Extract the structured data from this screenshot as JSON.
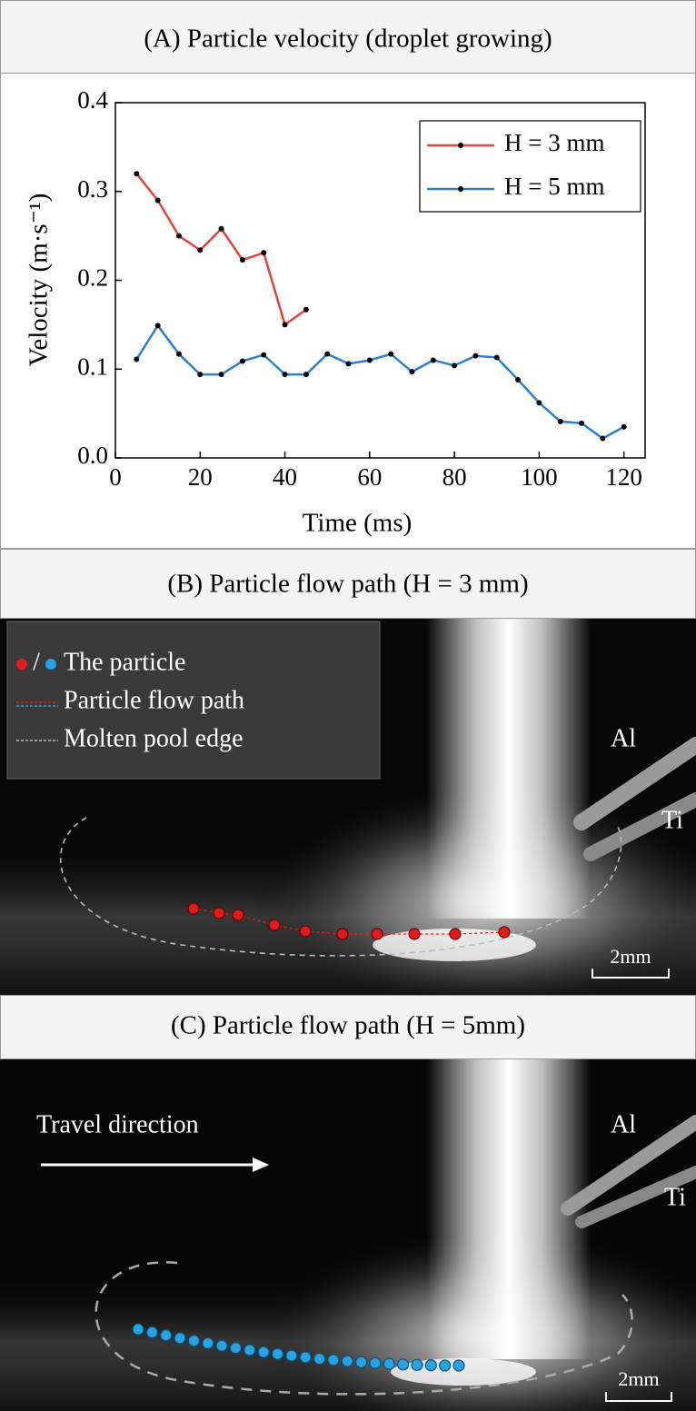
{
  "chart_data": {
    "type": "line",
    "title": "(A) Particle velocity (droplet growing)",
    "x_label": "Time (ms)",
    "y_label": "Velocity (m·s⁻¹)",
    "xlim": [
      0,
      125
    ],
    "ylim": [
      0,
      0.4
    ],
    "xticks": [
      0,
      20,
      40,
      60,
      80,
      100,
      120
    ],
    "yticks": [
      {
        "value": 0,
        "label": "0.0"
      },
      0.1,
      0.2,
      0.3,
      0.4
    ],
    "legend": "upper right",
    "series": [
      {
        "name": "H = 3 mm",
        "color": "#e8413c",
        "x": [
          5,
          10,
          15,
          20,
          25,
          30,
          35,
          40,
          45
        ],
        "values": [
          0.32,
          0.29,
          0.25,
          0.234,
          0.258,
          0.223,
          0.231,
          0.15,
          0.167
        ]
      },
      {
        "name": "H = 5 mm",
        "color": "#2a7fd4",
        "x": [
          5,
          10,
          15,
          20,
          25,
          30,
          35,
          40,
          45,
          50,
          55,
          60,
          65,
          70,
          75,
          80,
          85,
          90,
          95,
          100,
          105,
          110,
          115,
          120
        ],
        "values": [
          0.111,
          0.149,
          0.117,
          0.094,
          0.094,
          0.109,
          0.116,
          0.094,
          0.094,
          0.117,
          0.106,
          0.11,
          0.117,
          0.097,
          0.11,
          0.104,
          0.115,
          0.113,
          0.088,
          0.062,
          0.041,
          0.039,
          0.022,
          0.035
        ]
      }
    ]
  },
  "panel_b": {
    "title": "(B) Particle flow path (H = 3 mm)",
    "legend_separator": "/",
    "legend": [
      "The particle",
      "Particle flow path",
      "Molten pool edge"
    ],
    "label_al": "Al",
    "label_ti": "Ti",
    "scale_bar": "2mm"
  },
  "panel_c": {
    "title": "(C) Particle flow path (H = 5mm)",
    "annotation": "Travel direction",
    "label_al": "Al",
    "label_ti": "Ti",
    "scale_bar": "2mm"
  }
}
